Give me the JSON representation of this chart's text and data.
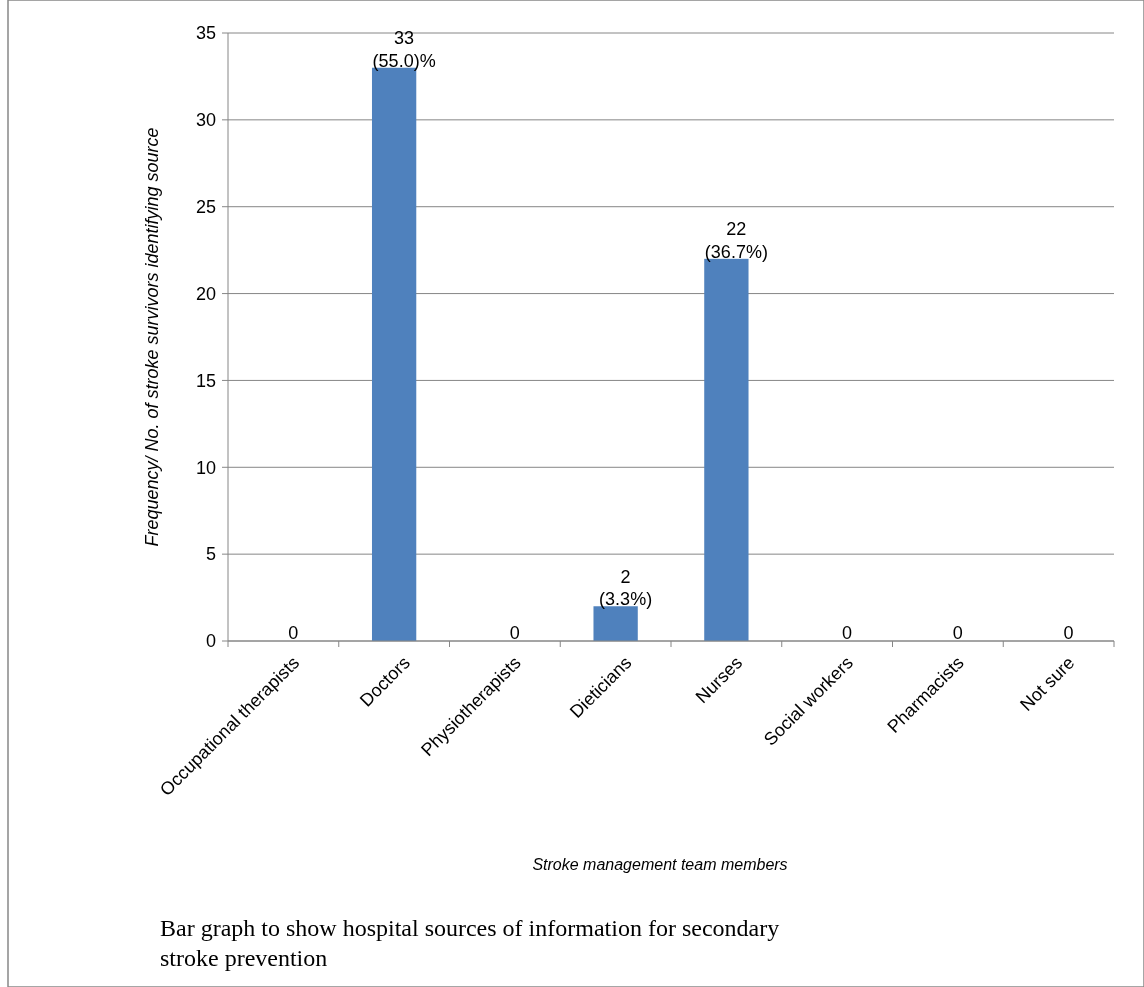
{
  "chart_data": {
    "type": "bar",
    "xlabel": "Stroke management team members",
    "ylabel": "Frequency/ No. of stroke survivors identifying source",
    "categories": [
      "Occupational therapists",
      "Doctors",
      "Physiotherapists",
      "Dieticians",
      "Nurses",
      "Social workers",
      "Pharmacists",
      "Not sure"
    ],
    "values": [
      0,
      33,
      0,
      2,
      22,
      0,
      0,
      0
    ],
    "value_labels": [
      "0",
      "33\n(55.0)%",
      "0",
      "2\n(3.3%)",
      "22\n(36.7%)",
      "0",
      "0",
      "0"
    ],
    "color": "#4f81bd",
    "ylim": [
      0,
      35
    ],
    "yticks": [
      0,
      5,
      10,
      15,
      20,
      25,
      30,
      35
    ],
    "grid": "y",
    "annotations": [
      "Bar graph to show hospital sources of information for secondary stroke prevention"
    ]
  }
}
